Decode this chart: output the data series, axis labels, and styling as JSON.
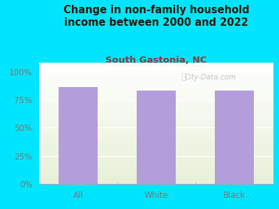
{
  "title": "Change in non-family household\nincome between 2000 and 2022",
  "subtitle": "South Gastonia, NC",
  "categories": [
    "All",
    "White",
    "Black"
  ],
  "values": [
    86,
    83,
    83
  ],
  "bar_color": "#b39ddb",
  "background_color": "#00e5ff",
  "title_color": "#2b1a00",
  "subtitle_color": "#8b3a3a",
  "tick_label_color": "#777777",
  "yticks": [
    0,
    25,
    50,
    75,
    100
  ],
  "ylim": [
    0,
    108
  ],
  "title_fontsize": 10.5,
  "subtitle_fontsize": 9.5,
  "tick_fontsize": 8.5,
  "watermark": "City-Data.com"
}
